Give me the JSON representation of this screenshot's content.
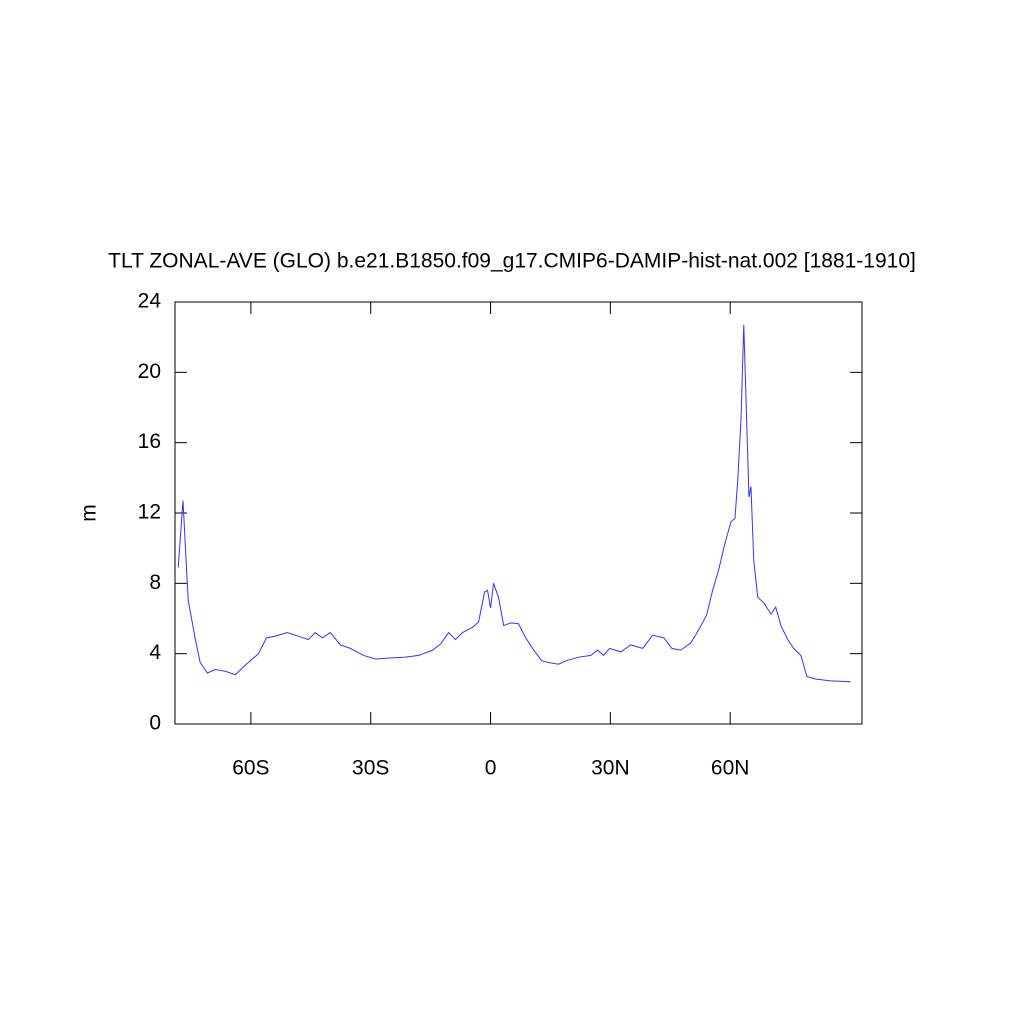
{
  "chart_data": {
    "type": "line",
    "title": "TLT ZONAL-AVE (GLO) b.e21.B1850.f09_g17.CMIP6-DAMIP-hist-nat.002 [1881-1910]",
    "y_label": "m",
    "color": "#3333ff",
    "x": [
      -78.2,
      -77,
      -75.7,
      -73.9,
      -72.7,
      -70.9,
      -68.9,
      -66.4,
      -63.9,
      -61.4,
      -58.1,
      -56.1,
      -53.9,
      -50.9,
      -47.6,
      -45.6,
      -43.9,
      -42.1,
      -40.1,
      -37.6,
      -35.1,
      -31.8,
      -28.8,
      -25.1,
      -21.3,
      -18,
      -14.5,
      -12.5,
      -10.5,
      -8.8,
      -7,
      -4.5,
      -3,
      -1.5,
      -0.75,
      0,
      0.75,
      2,
      3.3,
      5,
      7,
      8.8,
      10.8,
      12.8,
      14.5,
      17,
      19,
      22.1,
      25.1,
      26.8,
      28.3,
      29.8,
      32.6,
      35.1,
      38.1,
      40.6,
      43.4,
      45.4,
      47.6,
      50.1,
      52.1,
      54.1,
      55.6,
      57.1,
      58.6,
      60.2,
      61.2,
      61.9,
      62.7,
      63.4,
      64.2,
      64.7,
      65.2,
      65.9,
      66.9,
      68.4,
      70.2,
      71.4,
      72.7,
      74.4,
      75.9,
      77.7,
      79.2,
      81.5,
      85.2,
      90.2
    ],
    "values": [
      8.9,
      12.7,
      7.05,
      4.8,
      3.5,
      2.9,
      3.1,
      3.0,
      2.8,
      3.35,
      4.0,
      4.9,
      5.0,
      5.2,
      4.95,
      4.8,
      5.2,
      4.9,
      5.2,
      4.5,
      4.3,
      3.9,
      3.7,
      3.75,
      3.8,
      3.9,
      4.2,
      4.55,
      5.2,
      4.8,
      5.2,
      5.5,
      5.8,
      7.5,
      7.6,
      6.6,
      8.0,
      7.2,
      5.6,
      5.75,
      5.7,
      4.9,
      4.2,
      3.6,
      3.5,
      3.4,
      3.6,
      3.8,
      3.9,
      4.2,
      3.9,
      4.3,
      4.1,
      4.5,
      4.3,
      5.05,
      4.9,
      4.3,
      4.2,
      4.6,
      5.35,
      6.2,
      7.6,
      8.75,
      10.2,
      11.5,
      11.7,
      13.9,
      17.3,
      22.7,
      16.7,
      12.9,
      13.5,
      9.3,
      7.2,
      6.9,
      6.25,
      6.65,
      5.6,
      4.8,
      4.3,
      3.9,
      2.7,
      2.55,
      2.45,
      2.4
    ],
    "xlim": [
      -79,
      93
    ],
    "xticks": [
      {
        "value": -60,
        "label": "60S"
      },
      {
        "value": -30,
        "label": "30S"
      },
      0,
      {
        "value": 30,
        "label": "30N"
      },
      {
        "value": 60,
        "label": "60N"
      }
    ],
    "ylim": [
      0,
      24
    ],
    "yticks": [
      0,
      4,
      8,
      12,
      16,
      20,
      24
    ]
  }
}
